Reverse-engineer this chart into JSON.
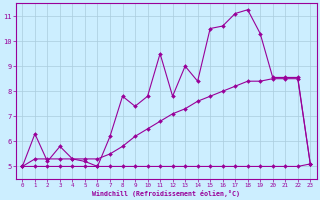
{
  "xlabel": "Windchill (Refroidissement éolien,°C)",
  "bg_color": "#cceeff",
  "line_color": "#990099",
  "grid_color": "#aaccdd",
  "xlim": [
    -0.5,
    23.5
  ],
  "ylim": [
    4.5,
    11.5
  ],
  "xticks": [
    0,
    1,
    2,
    3,
    4,
    5,
    6,
    7,
    8,
    9,
    10,
    11,
    12,
    13,
    14,
    15,
    16,
    17,
    18,
    19,
    20,
    21,
    22,
    23
  ],
  "yticks": [
    5,
    6,
    7,
    8,
    9,
    10,
    11
  ],
  "line1_x": [
    0,
    1,
    2,
    3,
    4,
    5,
    6,
    7,
    8,
    9,
    10,
    11,
    12,
    13,
    14,
    15,
    16,
    17,
    18,
    19,
    20,
    21,
    22,
    23
  ],
  "line1_y": [
    5.0,
    5.0,
    5.0,
    5.0,
    5.0,
    5.0,
    5.0,
    5.0,
    5.0,
    5.0,
    5.0,
    5.0,
    5.0,
    5.0,
    5.0,
    5.0,
    5.0,
    5.0,
    5.0,
    5.0,
    5.0,
    5.0,
    5.0,
    5.1
  ],
  "line2_x": [
    0,
    1,
    2,
    3,
    4,
    5,
    6,
    7,
    8,
    9,
    10,
    11,
    12,
    13,
    14,
    15,
    16,
    17,
    18,
    19,
    20,
    21,
    22,
    23
  ],
  "line2_y": [
    5.0,
    5.3,
    5.3,
    5.3,
    5.3,
    5.3,
    5.3,
    5.5,
    5.8,
    6.2,
    6.5,
    6.8,
    7.1,
    7.3,
    7.6,
    7.8,
    8.0,
    8.2,
    8.4,
    8.4,
    8.5,
    8.5,
    8.5,
    5.1
  ],
  "line3_x": [
    0,
    1,
    2,
    3,
    4,
    5,
    6,
    7,
    8,
    9,
    10,
    11,
    12,
    13,
    14,
    15,
    16,
    17,
    18,
    19,
    20,
    21,
    22,
    23
  ],
  "line3_y": [
    5.0,
    6.3,
    5.2,
    5.8,
    5.3,
    5.2,
    5.0,
    6.2,
    7.8,
    7.4,
    7.8,
    9.5,
    7.8,
    9.0,
    8.4,
    10.5,
    10.6,
    11.1,
    11.25,
    10.3,
    8.55,
    8.55,
    8.55,
    5.1
  ]
}
